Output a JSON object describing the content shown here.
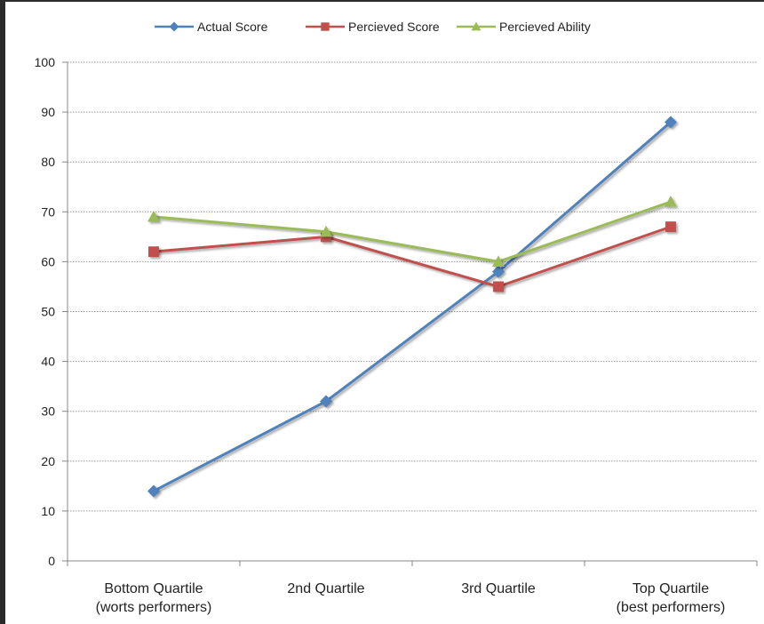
{
  "chart_data": {
    "type": "line",
    "title": "",
    "xlabel": "",
    "ylabel": "",
    "categories": [
      [
        "Bottom Quartile",
        "(worts performers)"
      ],
      [
        "2nd Quartile"
      ],
      [
        "3rd Quartile"
      ],
      [
        "Top Quartile",
        "(best performers)"
      ]
    ],
    "ylim": [
      0,
      100
    ],
    "yticks": [
      0,
      10,
      20,
      30,
      40,
      50,
      60,
      70,
      80,
      90,
      100
    ],
    "grid": true,
    "legend_position": "top",
    "series": [
      {
        "name": "Actual Score",
        "values": [
          14,
          32,
          58,
          88
        ],
        "color": "#4F81BD",
        "marker": "diamond"
      },
      {
        "name": "Percieved Score",
        "values": [
          62,
          65,
          55,
          67
        ],
        "color": "#C0504D",
        "marker": "square"
      },
      {
        "name": "Percieved Ability",
        "values": [
          69,
          66,
          60,
          72
        ],
        "color": "#9BBB59",
        "marker": "triangle"
      }
    ]
  }
}
